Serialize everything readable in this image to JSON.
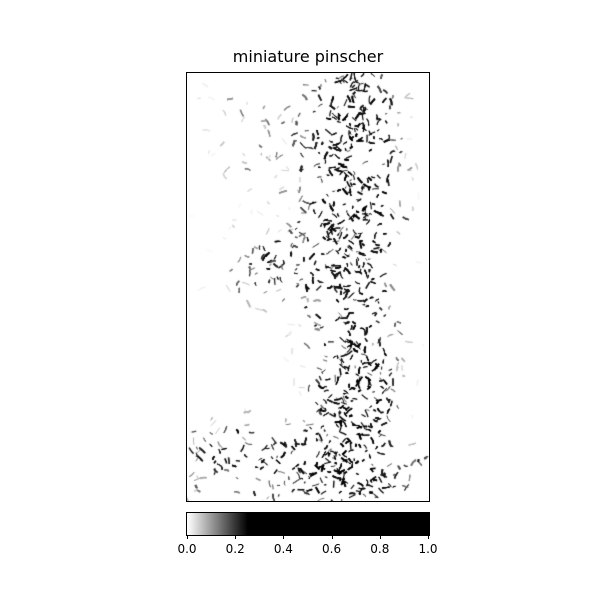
{
  "chart_data": {
    "type": "heatmap",
    "title": "miniature pinscher",
    "xlabel": "",
    "ylabel": "",
    "grid": false,
    "colormap": "gray_r",
    "color_low": "#ffffff",
    "color_high": "#000000",
    "colorbar": {
      "orientation": "horizontal",
      "range": [
        0.0,
        1.0
      ],
      "saturation_value": 0.25,
      "ticks": [
        0.0,
        0.2,
        0.4,
        0.6,
        0.8,
        1.0
      ],
      "tick_labels": [
        "0.0",
        "0.2",
        "0.4",
        "0.6",
        "0.8",
        "1.0"
      ]
    }
  }
}
